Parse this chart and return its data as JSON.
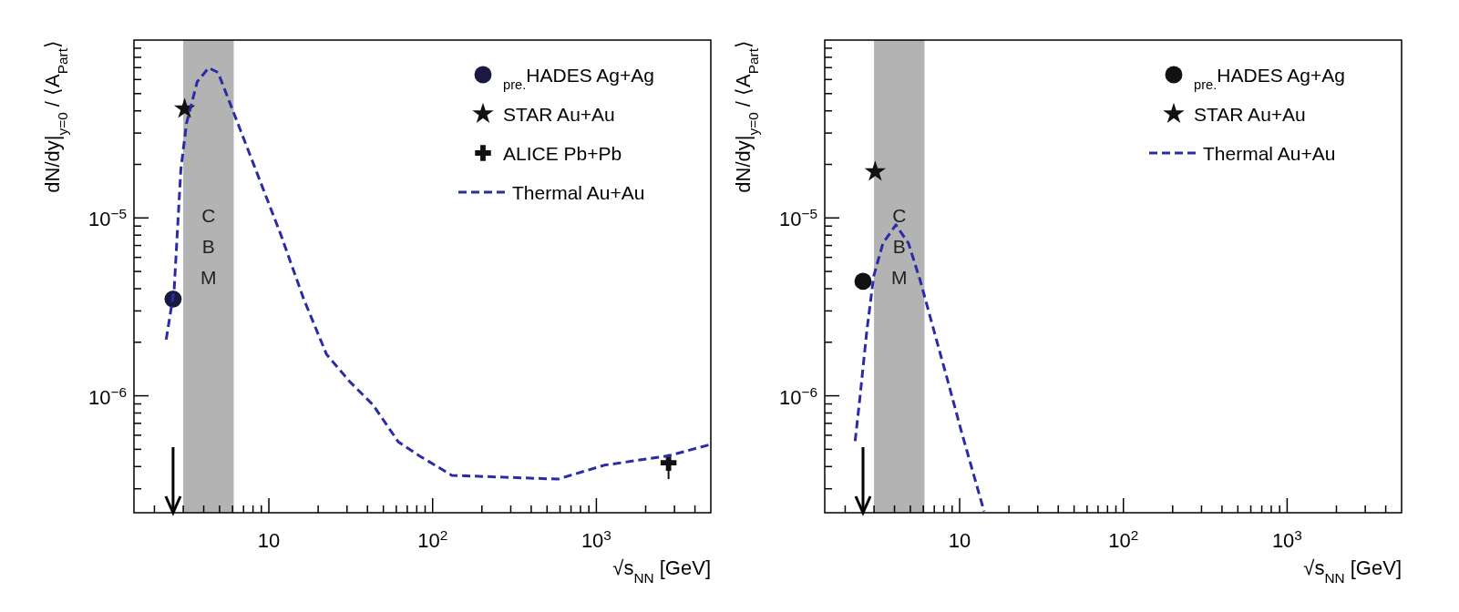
{
  "chart_data": [
    {
      "type": "scatter",
      "xlabel": "√s$_{NN}$ [GeV]",
      "ylabel": "dN/dy|$_{y=0}$ / ⟨A$_{Part}$⟩",
      "log": "xy",
      "legend": "top right",
      "xlim": [
        1.5,
        5000
      ],
      "ylim": [
        2.2e-07,
        0.0001
      ],
      "xticks": [
        {
          "value": 2,
          "label": null
        },
        {
          "value": 3,
          "label": null
        },
        {
          "value": 4,
          "label": null
        },
        {
          "value": 5,
          "label": null
        },
        {
          "value": 6,
          "label": null
        },
        {
          "value": 7,
          "label": null
        },
        {
          "value": 8,
          "label": null
        },
        {
          "value": 9,
          "label": null
        },
        10,
        {
          "value": 20,
          "label": null
        },
        {
          "value": 30,
          "label": null
        },
        {
          "value": 40,
          "label": null
        },
        {
          "value": 50,
          "label": null
        },
        {
          "value": 60,
          "label": null
        },
        {
          "value": 70,
          "label": null
        },
        {
          "value": 80,
          "label": null
        },
        {
          "value": 90,
          "label": null
        },
        {
          "value": 100,
          "label": "10$^{2}$"
        },
        {
          "value": 200,
          "label": null
        },
        {
          "value": 300,
          "label": null
        },
        {
          "value": 400,
          "label": null
        },
        {
          "value": 500,
          "label": null
        },
        {
          "value": 600,
          "label": null
        },
        {
          "value": 700,
          "label": null
        },
        {
          "value": 800,
          "label": null
        },
        {
          "value": 900,
          "label": null
        },
        {
          "value": 1000,
          "label": "10$^{3}$"
        },
        {
          "value": 2000,
          "label": null
        },
        {
          "value": 3000,
          "label": null
        },
        {
          "value": 4000,
          "label": null
        }
      ],
      "yticks": [
        {
          "value": 3e-07,
          "label": null
        },
        {
          "value": 4e-07,
          "label": null
        },
        {
          "value": 5e-07,
          "label": null
        },
        {
          "value": 6e-07,
          "label": null
        },
        {
          "value": 7e-07,
          "label": null
        },
        {
          "value": 8e-07,
          "label": null
        },
        {
          "value": 9e-07,
          "label": null
        },
        {
          "value": 1e-06,
          "label": "10$^{−6}$"
        },
        {
          "value": 2e-06,
          "label": null
        },
        {
          "value": 3e-06,
          "label": null
        },
        {
          "value": 4e-06,
          "label": null
        },
        {
          "value": 5e-06,
          "label": null
        },
        {
          "value": 6e-06,
          "label": null
        },
        {
          "value": 7e-06,
          "label": null
        },
        {
          "value": 8e-06,
          "label": null
        },
        {
          "value": 9e-06,
          "label": null
        },
        {
          "value": 1e-05,
          "label": "10$^{−5}$"
        },
        {
          "value": 2e-05,
          "label": null
        },
        {
          "value": 3e-05,
          "label": null
        },
        {
          "value": 4e-05,
          "label": null
        },
        {
          "value": 5e-05,
          "label": null
        },
        {
          "value": 6e-05,
          "label": null
        },
        {
          "value": 7e-05,
          "label": null
        },
        {
          "value": 8e-05,
          "label": null
        },
        {
          "value": 9e-05,
          "label": null
        }
      ],
      "bands": [
        {
          "axis": "x",
          "from": 3.0,
          "to": 6.1,
          "label": "CBM",
          "color": "#b3b3b3"
        }
      ],
      "series": [
        {
          "name": "$_{pre.}$HADES Ag+Ag",
          "marker": "circle",
          "color": "#1a1a40",
          "x": [
            2.6
          ],
          "values": [
            3.5e-06
          ]
        },
        {
          "name": "STAR Au+Au",
          "marker": "star",
          "color": "#111111",
          "x": [
            3.06
          ],
          "values": [
            4.1e-05
          ]
        },
        {
          "name": "ALICE Pb+Pb",
          "marker": "cross",
          "color": "#111111",
          "x": [
            2760
          ],
          "values": [
            4.2e-07
          ],
          "errors": [
            [
              3.4e-07,
              4.7e-07
            ]
          ]
        },
        {
          "name": "Thermal Au+Au",
          "type": "line",
          "line_style": "dashed",
          "color": "#2b2ba6",
          "x": [
            2.36,
            2.64,
            2.9,
            3.14,
            3.65,
            4.29,
            4.89,
            6.14,
            8.5,
            11.8,
            16.3,
            22.5,
            31.2,
            43.2,
            61.8,
            82.8,
            131,
            583,
            1117,
            2770,
            4990
          ],
          "values": [
            2.07e-06,
            3.96e-06,
            1.87e-05,
            3.4e-05,
            5.83e-05,
            6.98e-05,
            6.58e-05,
            3.84e-05,
            1.77e-05,
            8.1e-06,
            3.51e-06,
            1.71e-06,
            1.2e-06,
            8.9e-07,
            5.5e-07,
            4.6e-07,
            3.57e-07,
            3.4e-07,
            4.07e-07,
            4.6e-07,
            5.33e-07
          ]
        }
      ]
    },
    {
      "type": "scatter",
      "xlabel": "√s$_{NN}$ [GeV]",
      "ylabel": "dN/dy|$_{y=0}$ / ⟨A$_{Part}$⟩",
      "log": "xy",
      "legend": "top right",
      "xlim": [
        1.5,
        5000
      ],
      "ylim": [
        2.2e-07,
        0.0001
      ],
      "xticks": [
        {
          "value": 2,
          "label": null
        },
        {
          "value": 3,
          "label": null
        },
        {
          "value": 4,
          "label": null
        },
        {
          "value": 5,
          "label": null
        },
        {
          "value": 6,
          "label": null
        },
        {
          "value": 7,
          "label": null
        },
        {
          "value": 8,
          "label": null
        },
        {
          "value": 9,
          "label": null
        },
        10,
        {
          "value": 20,
          "label": null
        },
        {
          "value": 30,
          "label": null
        },
        {
          "value": 40,
          "label": null
        },
        {
          "value": 50,
          "label": null
        },
        {
          "value": 60,
          "label": null
        },
        {
          "value": 70,
          "label": null
        },
        {
          "value": 80,
          "label": null
        },
        {
          "value": 90,
          "label": null
        },
        {
          "value": 100,
          "label": "10$^{2}$"
        },
        {
          "value": 200,
          "label": null
        },
        {
          "value": 300,
          "label": null
        },
        {
          "value": 400,
          "label": null
        },
        {
          "value": 500,
          "label": null
        },
        {
          "value": 600,
          "label": null
        },
        {
          "value": 700,
          "label": null
        },
        {
          "value": 800,
          "label": null
        },
        {
          "value": 900,
          "label": null
        },
        {
          "value": 1000,
          "label": "10$^{3}$"
        },
        {
          "value": 2000,
          "label": null
        },
        {
          "value": 3000,
          "label": null
        },
        {
          "value": 4000,
          "label": null
        }
      ],
      "yticks": [
        {
          "value": 3e-07,
          "label": null
        },
        {
          "value": 4e-07,
          "label": null
        },
        {
          "value": 5e-07,
          "label": null
        },
        {
          "value": 6e-07,
          "label": null
        },
        {
          "value": 7e-07,
          "label": null
        },
        {
          "value": 8e-07,
          "label": null
        },
        {
          "value": 9e-07,
          "label": null
        },
        {
          "value": 1e-06,
          "label": "10$^{−6}$"
        },
        {
          "value": 2e-06,
          "label": null
        },
        {
          "value": 3e-06,
          "label": null
        },
        {
          "value": 4e-06,
          "label": null
        },
        {
          "value": 5e-06,
          "label": null
        },
        {
          "value": 6e-06,
          "label": null
        },
        {
          "value": 7e-06,
          "label": null
        },
        {
          "value": 8e-06,
          "label": null
        },
        {
          "value": 9e-06,
          "label": null
        },
        {
          "value": 1e-05,
          "label": "10$^{−5}$"
        },
        {
          "value": 2e-05,
          "label": null
        },
        {
          "value": 3e-05,
          "label": null
        },
        {
          "value": 4e-05,
          "label": null
        },
        {
          "value": 5e-05,
          "label": null
        },
        {
          "value": 6e-05,
          "label": null
        },
        {
          "value": 7e-05,
          "label": null
        },
        {
          "value": 8e-05,
          "label": null
        },
        {
          "value": 9e-05,
          "label": null
        }
      ],
      "bands": [
        {
          "axis": "x",
          "from": 3.0,
          "to": 6.1,
          "label": "CBM",
          "color": "#b3b3b3"
        }
      ],
      "series": [
        {
          "name": "$_{pre.}$HADES Ag+Ag",
          "marker": "circle",
          "color": "#111111",
          "x": [
            2.57
          ],
          "values": [
            4.4e-06
          ]
        },
        {
          "name": "STAR Au+Au",
          "marker": "star",
          "color": "#111111",
          "x": [
            3.05
          ],
          "values": [
            1.82e-05
          ]
        },
        {
          "name": "Thermal Au+Au",
          "type": "line",
          "line_style": "dashed",
          "color": "#2b2ba6",
          "x": [
            2.3,
            2.45,
            2.71,
            2.99,
            3.4,
            4.08,
            4.87,
            5.74,
            6.98,
            8.49,
            10.3,
            14.1
          ],
          "values": [
            5.56e-07,
            9.4e-07,
            2.31e-06,
            4.73e-06,
            7.2e-06,
            9.14e-06,
            7.2e-06,
            4.46e-06,
            2.31e-06,
            1.2e-06,
            6.2e-07,
            2.24e-07
          ]
        }
      ]
    }
  ]
}
